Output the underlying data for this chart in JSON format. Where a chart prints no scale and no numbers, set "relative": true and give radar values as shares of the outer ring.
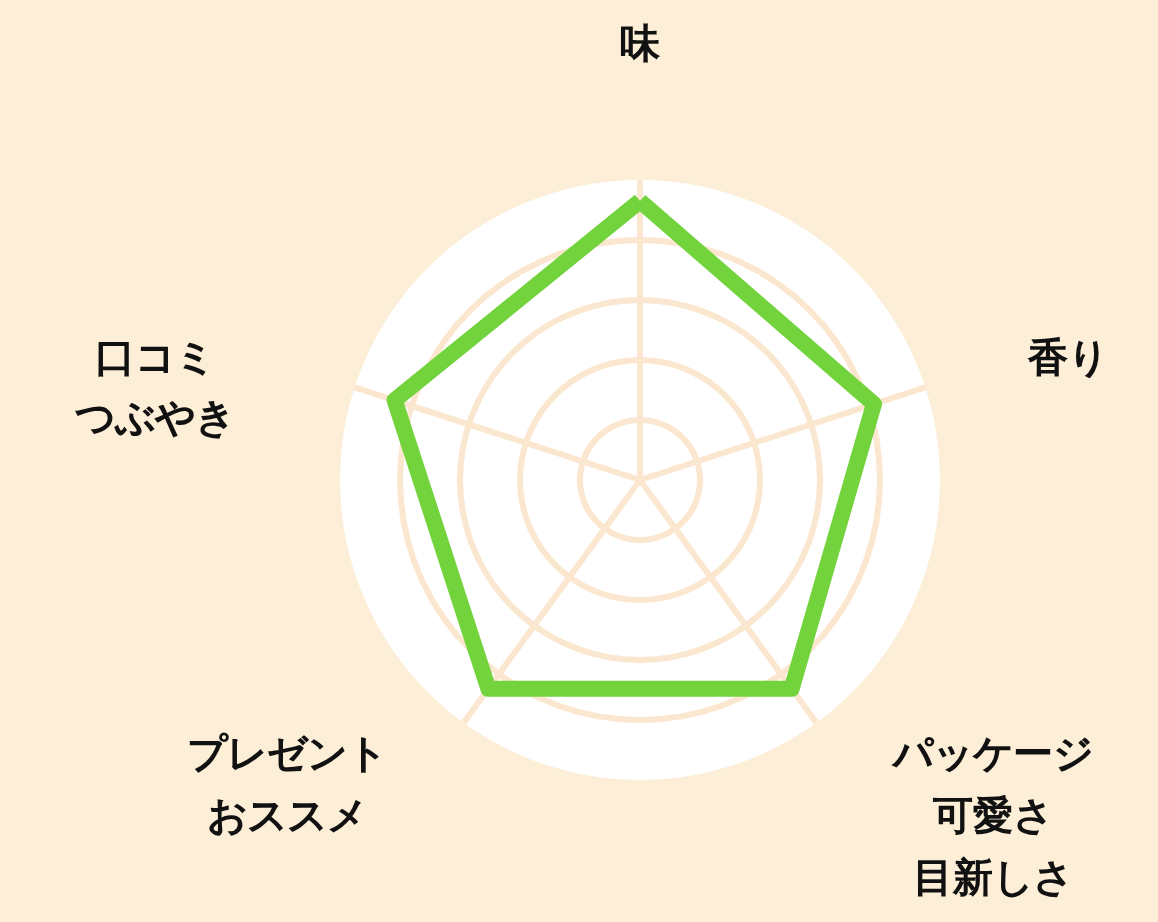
{
  "chart_data": {
    "type": "radar",
    "relative": true,
    "grid": true,
    "marker": "none",
    "categories": [
      "味",
      "香り",
      "パッケージ可愛さ目新しさ",
      "プレゼントおススメ",
      "口コミつぶやき"
    ],
    "series": [
      {
        "color": "#72d33c",
        "values": [
          0.93,
          0.82,
          0.86,
          0.86,
          0.86
        ]
      }
    ]
  }
}
